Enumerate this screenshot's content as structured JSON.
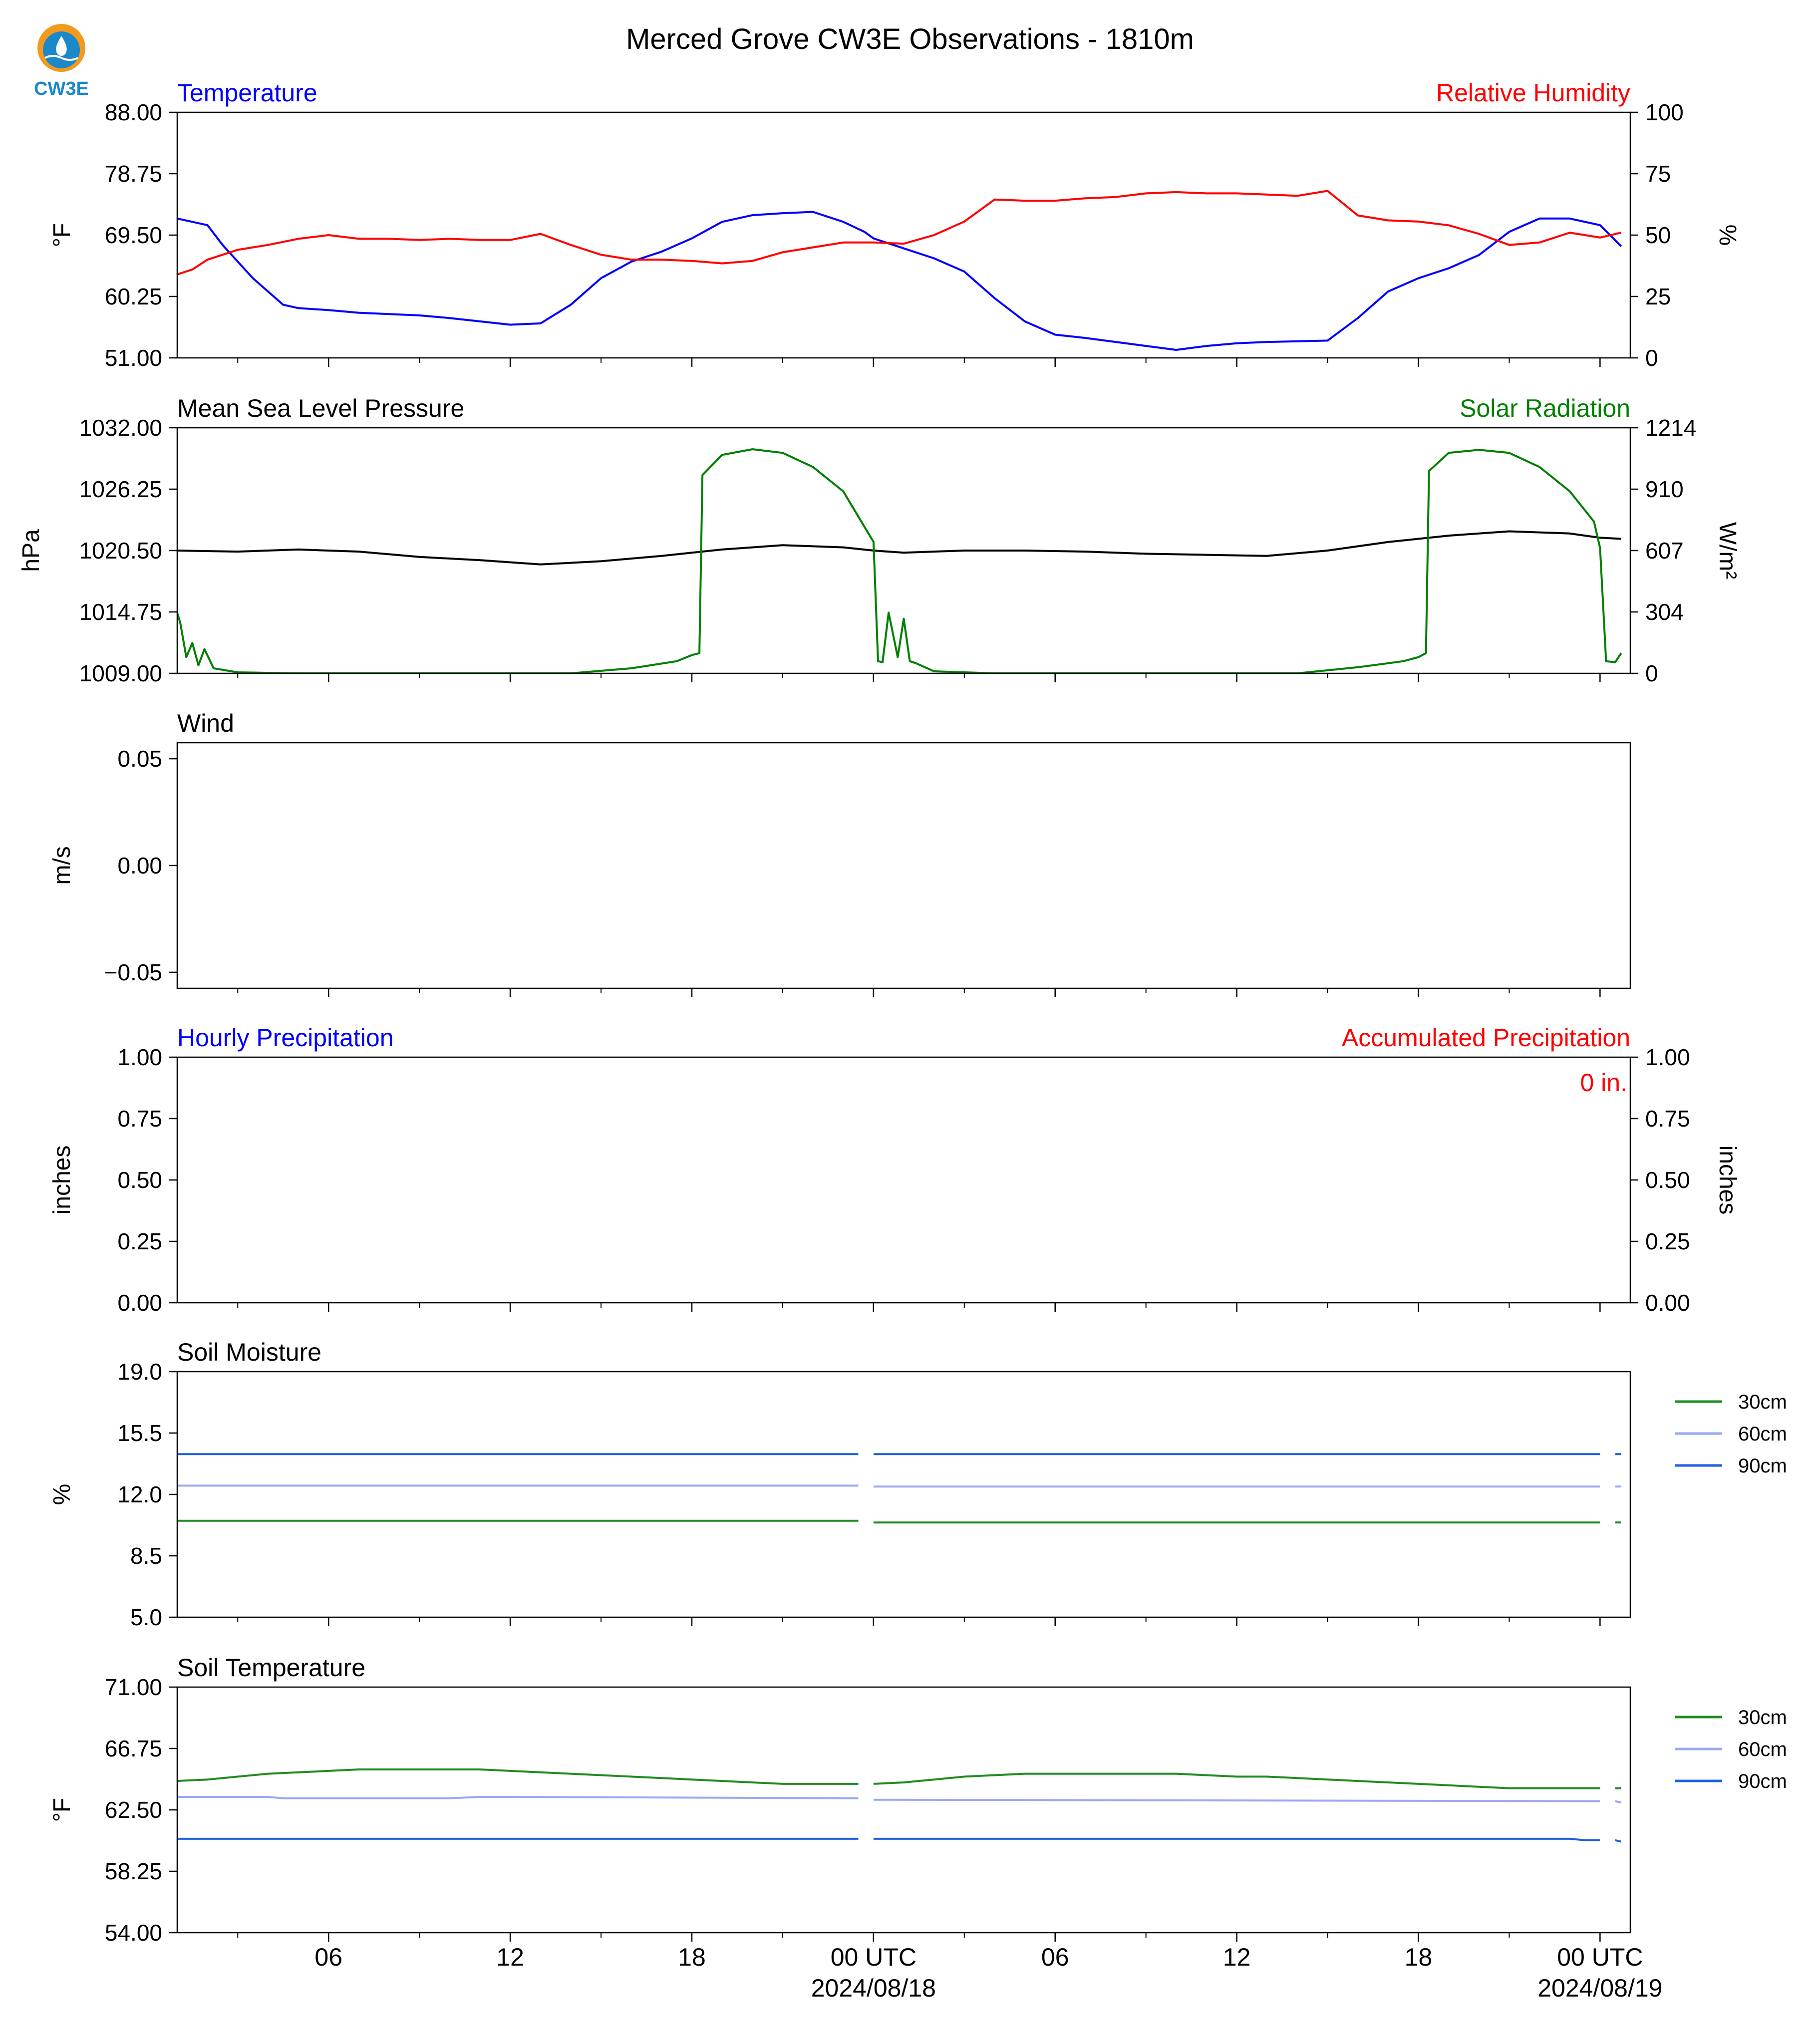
{
  "page": {
    "title": "Merced Grove CW3E Observations - 1810m",
    "logo_text": "CW3E"
  },
  "colors": {
    "blue": "#0000ff",
    "red": "#ff0000",
    "green": "#008000",
    "black": "#000000",
    "soil30": "#228b22",
    "soil60": "#9aa9f0",
    "soil90": "#1f5fe0",
    "logo_orange": "#f39a1e",
    "logo_teal": "#1b88c9"
  },
  "x_axis": {
    "ticks_hours": [
      6,
      12,
      18,
      24,
      30,
      36,
      42,
      48
    ],
    "tick_labels": [
      "06",
      "12",
      "18",
      "00 UTC",
      "06",
      "12",
      "18",
      "00 UTC"
    ],
    "date_labels": [
      "",
      "",
      "",
      "2024/08/18",
      "",
      "",
      "",
      "2024/08/19"
    ],
    "range_hours": [
      1,
      49
    ]
  },
  "chart_data": [
    {
      "type": "line",
      "panel": "temperature_rh",
      "left_title": "Temperature",
      "right_title": "Relative Humidity",
      "ylabel_left": "°F",
      "ylabel_right": "%",
      "ylim_left": [
        51.0,
        88.0
      ],
      "ylim_right": [
        0,
        100
      ],
      "yticks_left": [
        "51.00",
        "60.25",
        "69.50",
        "78.75",
        "88.00"
      ],
      "yticks_right": [
        "0",
        "25",
        "50",
        "75",
        "100"
      ],
      "series": [
        {
          "name": "Temperature",
          "axis": "left",
          "color": "blue",
          "x": [
            1,
            2,
            2.5,
            3,
            3.5,
            4,
            4.5,
            5,
            6,
            7,
            8,
            9,
            10,
            11,
            12,
            13,
            14,
            15,
            16,
            17,
            18,
            19,
            20,
            21,
            22,
            23,
            23.7,
            24,
            25,
            26,
            27,
            28,
            29,
            30,
            31,
            32,
            33,
            34,
            35,
            36,
            37,
            38,
            39,
            40,
            41,
            42,
            43,
            44,
            45,
            46,
            47,
            48,
            48.7
          ],
          "y": [
            72,
            71,
            68,
            65.5,
            63,
            61,
            59,
            58.5,
            58.2,
            57.8,
            57.6,
            57.4,
            57,
            56.5,
            56,
            56.2,
            59,
            63,
            65.5,
            67,
            69,
            71.5,
            72.5,
            72.8,
            73,
            71.5,
            70,
            69,
            67.5,
            66,
            64,
            60,
            56.5,
            54.5,
            54,
            53.4,
            52.8,
            52.2,
            52.8,
            53.2,
            53.4,
            53.5,
            53.6,
            57,
            61,
            63,
            64.5,
            66.5,
            70,
            72,
            72,
            71,
            67.8
          ]
        },
        {
          "name": "Relative Humidity",
          "axis": "right",
          "color": "red",
          "x": [
            1,
            1.5,
            2,
            3,
            4,
            5,
            6,
            7,
            8,
            9,
            10,
            11,
            12,
            13,
            14,
            15,
            16,
            17,
            18,
            19,
            20,
            21,
            22,
            23,
            23.7,
            24,
            25,
            26,
            27,
            28,
            29,
            30,
            31,
            32,
            33,
            34,
            35,
            36,
            37,
            38,
            39,
            40,
            41,
            42,
            43,
            44,
            45,
            46,
            47,
            48,
            48.7
          ],
          "y": [
            34,
            36,
            40,
            44,
            46,
            48.5,
            50,
            48.5,
            48.5,
            48,
            48.5,
            48,
            48,
            50.5,
            46,
            42,
            40,
            40,
            39.5,
            38.5,
            39.5,
            43,
            45,
            47,
            47,
            47,
            46.5,
            50,
            55.5,
            64.5,
            64,
            64,
            65,
            65.5,
            67,
            67.5,
            67,
            67,
            66.5,
            66,
            68,
            58,
            56,
            55.5,
            54,
            50.5,
            46,
            47,
            51,
            49,
            51
          ]
        }
      ]
    },
    {
      "type": "line",
      "panel": "pressure_solar",
      "left_title": "Mean Sea Level Pressure",
      "right_title": "Solar Radiation",
      "ylabel_left": "hPa",
      "ylabel_right": "W/m²",
      "ylim_left": [
        1009.0,
        1032.0
      ],
      "ylim_right": [
        0,
        1214
      ],
      "yticks_left": [
        "1009.00",
        "1014.75",
        "1020.50",
        "1026.25",
        "1032.00"
      ],
      "yticks_right": [
        "0",
        "304",
        "607",
        "910",
        "1214"
      ],
      "series": [
        {
          "name": "Mean Sea Level Pressure",
          "axis": "left",
          "color": "black",
          "x": [
            1,
            3,
            5,
            7,
            9,
            11,
            13,
            15,
            17,
            19,
            21,
            23,
            24,
            25,
            27,
            29,
            31,
            33,
            35,
            37,
            39,
            41,
            43,
            45,
            47,
            48,
            48.7
          ],
          "y": [
            1020.5,
            1020.4,
            1020.6,
            1020.4,
            1019.9,
            1019.6,
            1019.2,
            1019.5,
            1020.0,
            1020.6,
            1021.0,
            1020.8,
            1020.5,
            1020.3,
            1020.5,
            1020.5,
            1020.4,
            1020.2,
            1020.1,
            1020.0,
            1020.5,
            1021.3,
            1021.9,
            1022.3,
            1022.1,
            1021.7,
            1021.6
          ]
        },
        {
          "name": "Solar Radiation",
          "axis": "right",
          "color": "green",
          "x": [
            1,
            1.1,
            1.3,
            1.5,
            1.7,
            1.9,
            2.2,
            3,
            5,
            10,
            14,
            16,
            17.5,
            18,
            18.25,
            18.35,
            19,
            20,
            21,
            22,
            23,
            23.8,
            24,
            24.15,
            24.3,
            24.5,
            24.8,
            25,
            25.2,
            25.4,
            26,
            28,
            34,
            38,
            40,
            41.5,
            42,
            42.25,
            42.35,
            43,
            44,
            45,
            46,
            47,
            47.8,
            48,
            48.2,
            48.5,
            48.7
          ],
          "y": [
            300,
            250,
            80,
            150,
            40,
            120,
            25,
            5,
            0,
            0,
            0,
            25,
            60,
            90,
            100,
            980,
            1080,
            1108,
            1090,
            1020,
            900,
            700,
            650,
            60,
            55,
            300,
            80,
            270,
            60,
            50,
            10,
            0,
            0,
            0,
            30,
            60,
            80,
            100,
            1000,
            1090,
            1105,
            1090,
            1020,
            900,
            750,
            620,
            60,
            55,
            100
          ]
        }
      ]
    },
    {
      "type": "line",
      "panel": "wind",
      "left_title": "Wind",
      "ylabel_left": "m/s",
      "ylim_left": [
        -0.0575,
        0.0575
      ],
      "yticks_left": [
        "−0.05",
        "0.00",
        "0.05"
      ],
      "series": []
    },
    {
      "type": "line",
      "panel": "precipitation",
      "left_title": "Hourly Precipitation",
      "right_title": "Accumulated Precipitation",
      "annotation": "0 in.",
      "ylabel_left": "inches",
      "ylabel_right": "inches",
      "ylim_left": [
        0,
        1
      ],
      "ylim_right": [
        0,
        1
      ],
      "yticks_left": [
        "0.00",
        "0.25",
        "0.50",
        "0.75",
        "1.00"
      ],
      "yticks_right": [
        "0.00",
        "0.25",
        "0.50",
        "0.75",
        "1.00"
      ],
      "series": [
        {
          "name": "Hourly Precipitation",
          "axis": "left",
          "color": "blue",
          "x": [
            1,
            49
          ],
          "y": [
            0,
            0
          ]
        },
        {
          "name": "Accumulated Precipitation",
          "axis": "right",
          "color": "red",
          "x": [
            1,
            49
          ],
          "y": [
            0,
            0
          ]
        }
      ]
    },
    {
      "type": "line",
      "panel": "soil_moisture",
      "left_title": "Soil Moisture",
      "ylabel_left": "%",
      "ylim_left": [
        5.0,
        19.0
      ],
      "yticks_left": [
        "5.0",
        "8.5",
        "12.0",
        "15.5",
        "19.0"
      ],
      "legend": [
        "30cm",
        "60cm",
        "90cm"
      ],
      "series": [
        {
          "name": "30cm",
          "color": "soil30",
          "x": [
            1,
            23.5,
            23.55,
            24,
            48,
            48.05,
            48.5,
            48.7
          ],
          "y": [
            10.5,
            10.5,
            null,
            10.4,
            10.4,
            null,
            10.4,
            10.4
          ]
        },
        {
          "name": "60cm",
          "color": "soil60",
          "x": [
            1,
            23.5,
            23.55,
            24,
            48,
            48.05,
            48.5,
            48.7
          ],
          "y": [
            12.5,
            12.5,
            null,
            12.45,
            12.45,
            null,
            12.45,
            12.45
          ]
        },
        {
          "name": "90cm",
          "color": "soil90",
          "x": [
            1,
            23.5,
            23.55,
            24,
            48,
            48.05,
            48.5,
            48.7
          ],
          "y": [
            14.3,
            14.3,
            null,
            14.3,
            14.3,
            null,
            14.3,
            14.3
          ]
        }
      ]
    },
    {
      "type": "line",
      "panel": "soil_temperature",
      "left_title": "Soil Temperature",
      "ylabel_left": "°F",
      "ylim_left": [
        54.0,
        71.0
      ],
      "yticks_left": [
        "54.00",
        "58.25",
        "62.50",
        "66.75",
        "71.00"
      ],
      "legend": [
        "30cm",
        "60cm",
        "90cm"
      ],
      "series": [
        {
          "name": "30cm",
          "color": "soil30",
          "x": [
            1,
            2,
            3,
            4,
            5,
            6,
            7,
            8,
            9,
            10,
            11,
            12,
            13,
            14,
            15,
            16,
            17,
            18,
            19,
            20,
            21,
            22,
            23,
            23.5,
            23.55,
            24,
            25,
            26,
            27,
            28,
            29,
            30,
            31,
            32,
            33,
            34,
            35,
            36,
            37,
            38,
            39,
            40,
            41,
            42,
            43,
            44,
            45,
            46,
            47,
            48,
            48.05,
            48.5,
            48.7
          ],
          "y": [
            64.5,
            64.6,
            64.8,
            65.0,
            65.1,
            65.2,
            65.3,
            65.3,
            65.3,
            65.3,
            65.3,
            65.2,
            65.1,
            65.0,
            64.9,
            64.8,
            64.7,
            64.6,
            64.5,
            64.4,
            64.3,
            64.3,
            64.3,
            64.3,
            null,
            64.3,
            64.4,
            64.6,
            64.8,
            64.9,
            65.0,
            65.0,
            65.0,
            65.0,
            65.0,
            65.0,
            64.9,
            64.8,
            64.8,
            64.7,
            64.6,
            64.5,
            64.4,
            64.3,
            64.2,
            64.1,
            64.0,
            64.0,
            64.0,
            64.0,
            null,
            64.0,
            64.0
          ]
        },
        {
          "name": "60cm",
          "color": "soil60",
          "x": [
            1,
            4,
            4.5,
            5,
            10,
            11,
            12,
            23.5,
            23.55,
            24,
            48,
            48.05,
            48.5,
            48.7
          ],
          "y": [
            63.4,
            63.4,
            63.3,
            63.3,
            63.3,
            63.4,
            63.4,
            63.3,
            null,
            63.2,
            63.1,
            null,
            63.1,
            63.0
          ]
        },
        {
          "name": "90cm",
          "color": "soil90",
          "x": [
            1,
            23.5,
            23.55,
            24,
            47,
            47.5,
            48,
            48.05,
            48.5,
            48.7
          ],
          "y": [
            60.5,
            60.5,
            null,
            60.5,
            60.5,
            60.4,
            60.4,
            null,
            60.4,
            60.3
          ]
        }
      ]
    }
  ]
}
